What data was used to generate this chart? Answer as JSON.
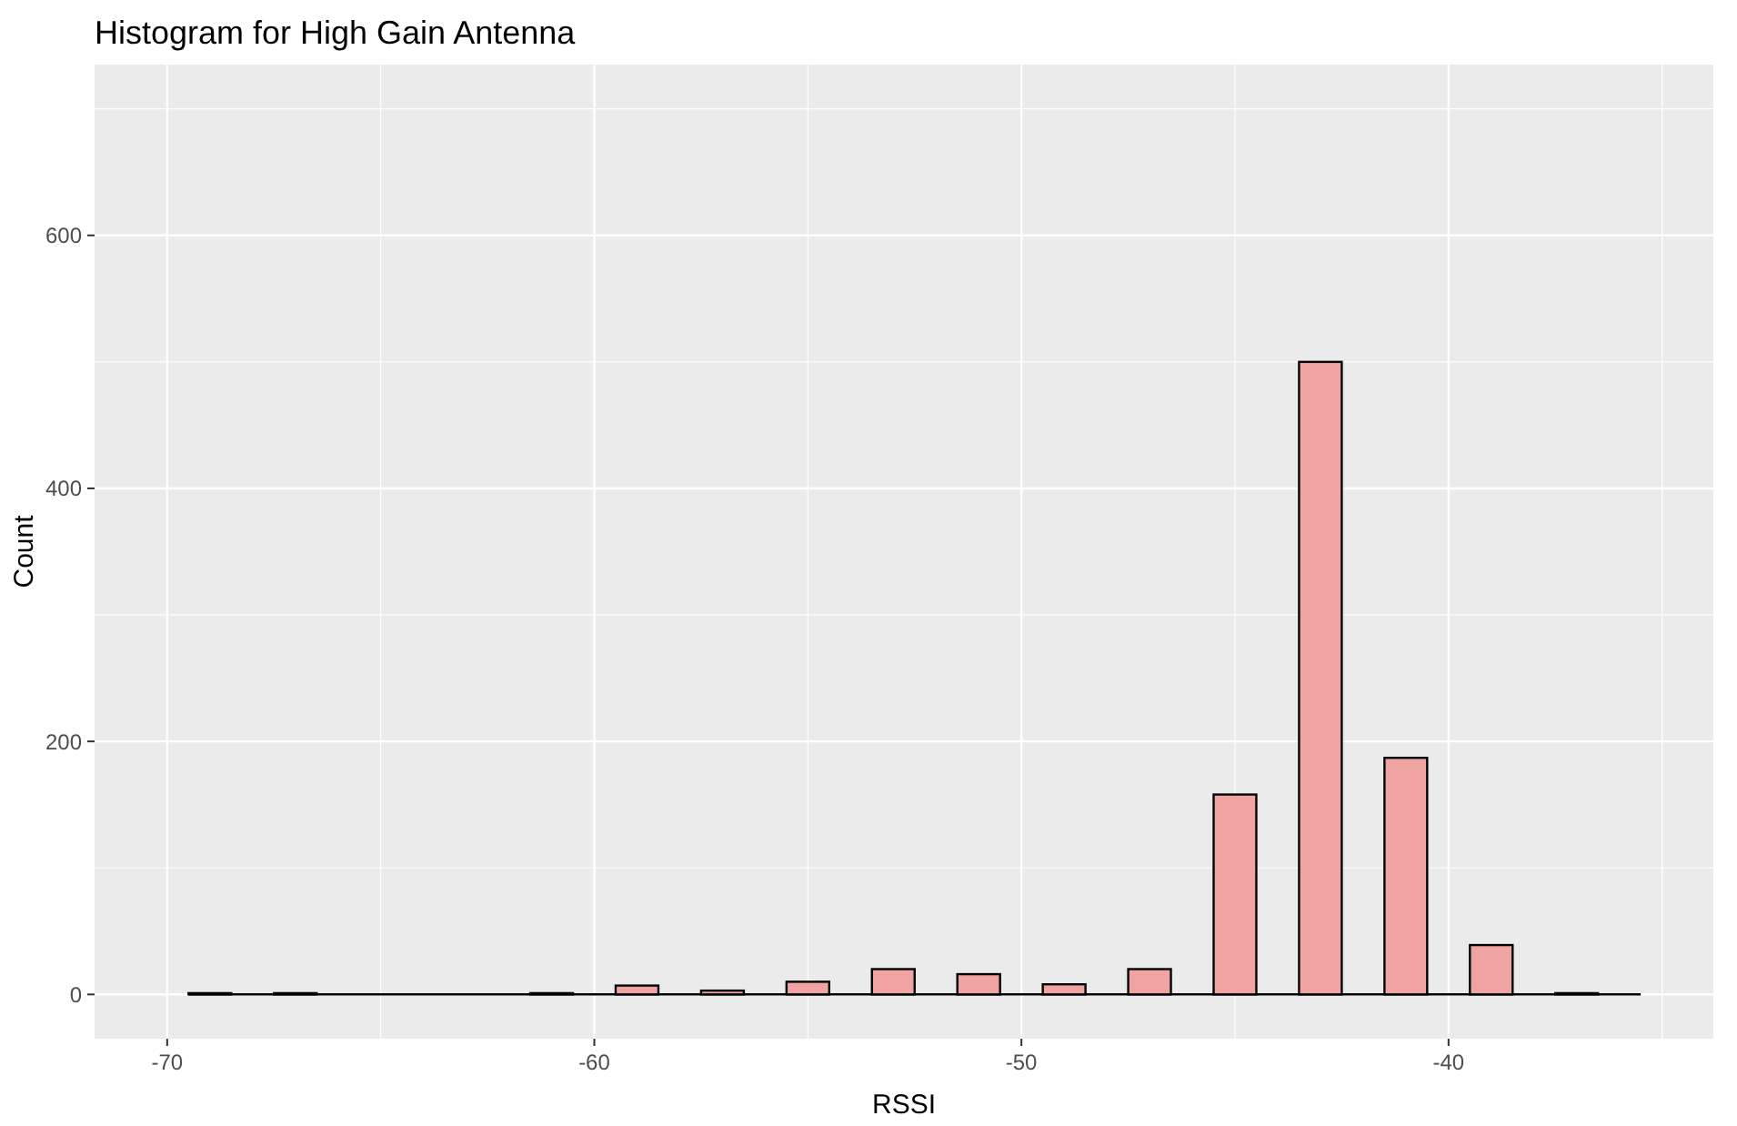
{
  "chart_data": {
    "type": "histogram",
    "title": "Histogram for High Gain Antenna",
    "xlabel": "RSSI",
    "ylabel": "Count",
    "bins": [
      -69.5,
      -68.5,
      -67.5,
      -66.5,
      -65.5,
      -64.5,
      -63.5,
      -62.5,
      -61.5,
      -60.5,
      -59.5,
      -58.5,
      -57.5,
      -56.5,
      -55.5,
      -54.5,
      -53.5,
      -52.5,
      -51.5,
      -50.5,
      -49.5,
      -48.5,
      -47.5,
      -46.5,
      -45.5,
      -44.5,
      -43.5,
      -42.5,
      -41.5,
      -40.5,
      -39.5,
      -38.5,
      -37.5,
      -36.5,
      -35.5
    ],
    "values": [
      1,
      0,
      1,
      0,
      0,
      0,
      0,
      0,
      1,
      0,
      7,
      0,
      3,
      0,
      10,
      0,
      20,
      0,
      16,
      0,
      8,
      0,
      20,
      0,
      158,
      0,
      500,
      0,
      187,
      0,
      39,
      0,
      1,
      0
    ],
    "color": "#f0a4a2",
    "xlim": [
      -71.7,
      -33.8
    ],
    "xticks": [
      -70,
      -60,
      -50,
      -40
    ],
    "ylim": [
      -35,
      735
    ],
    "yticks": [
      0,
      200,
      400,
      600
    ],
    "grid": true
  }
}
